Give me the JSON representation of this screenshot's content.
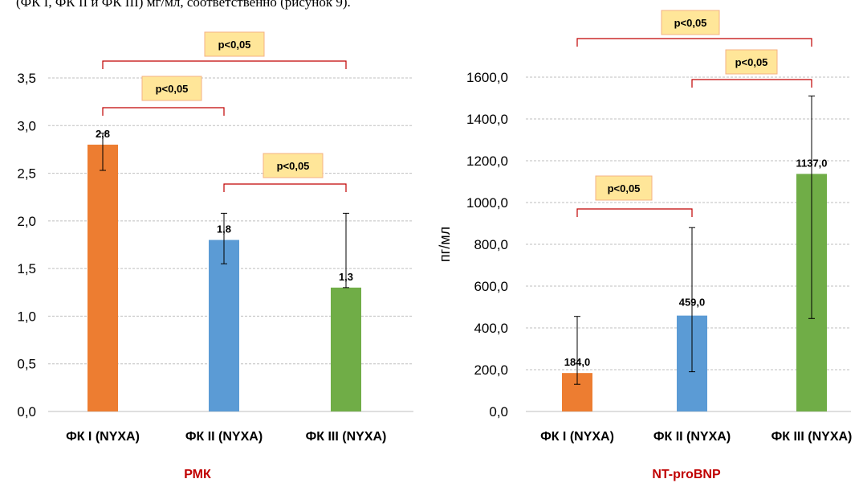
{
  "header_text": "(ФК I, ФК II и ФК III) мг/мл, соответственно (рисунок 9).",
  "chart_data": [
    {
      "type": "bar",
      "title": "РМК",
      "ylabel": "",
      "categories": [
        "ФК I (NYXA)",
        "ФК II (NYXA)",
        "ФК III (NYXA)"
      ],
      "values": [
        2.8,
        1.8,
        1.3
      ],
      "value_labels": [
        "2,8",
        "1,8",
        "1,3"
      ],
      "error_low": [
        2.53,
        1.55,
        1.3
      ],
      "error_high": [
        2.92,
        2.08,
        2.08
      ],
      "colors": [
        "#ed7d31",
        "#5b9bd5",
        "#70ad47"
      ],
      "ylim": [
        0,
        3.5
      ],
      "yticks": [
        "0,0",
        "0,5",
        "1,0",
        "1,5",
        "2,0",
        "2,5",
        "3,0",
        "3,5"
      ],
      "ytick_values": [
        0,
        0.5,
        1.0,
        1.5,
        2.0,
        2.5,
        3.0,
        3.5
      ],
      "grid": true,
      "significance": [
        {
          "from": 0,
          "to": 2,
          "label": "p<0,05"
        },
        {
          "from": 0,
          "to": 1,
          "label": "p<0,05"
        },
        {
          "from": 1,
          "to": 2,
          "label": "p<0,05"
        }
      ]
    },
    {
      "type": "bar",
      "title": "NT-proBNP",
      "ylabel": "пг/мл",
      "categories": [
        "ФК I (NYXA)",
        "ФК II (NYXA)",
        "ФК III (NYXA)"
      ],
      "values": [
        184.0,
        459.0,
        1137.0
      ],
      "value_labels": [
        "184,0",
        "459,0",
        "1137,0"
      ],
      "error_low": [
        130,
        190,
        445
      ],
      "error_high": [
        455,
        880,
        1510
      ],
      "colors": [
        "#ed7d31",
        "#5b9bd5",
        "#70ad47"
      ],
      "ylim": [
        0,
        1600
      ],
      "yticks": [
        "0,0",
        "200,0",
        "400,0",
        "600,0",
        "800,0",
        "1000,0",
        "1200,0",
        "1400,0",
        "1600,0"
      ],
      "ytick_values": [
        0,
        200,
        400,
        600,
        800,
        1000,
        1200,
        1400,
        1600
      ],
      "grid": true,
      "significance": [
        {
          "from": 0,
          "to": 2,
          "label": "p<0,05"
        },
        {
          "from": 1,
          "to": 2,
          "label": "p<0,05"
        },
        {
          "from": 0,
          "to": 1,
          "label": "p<0,05"
        }
      ]
    }
  ]
}
